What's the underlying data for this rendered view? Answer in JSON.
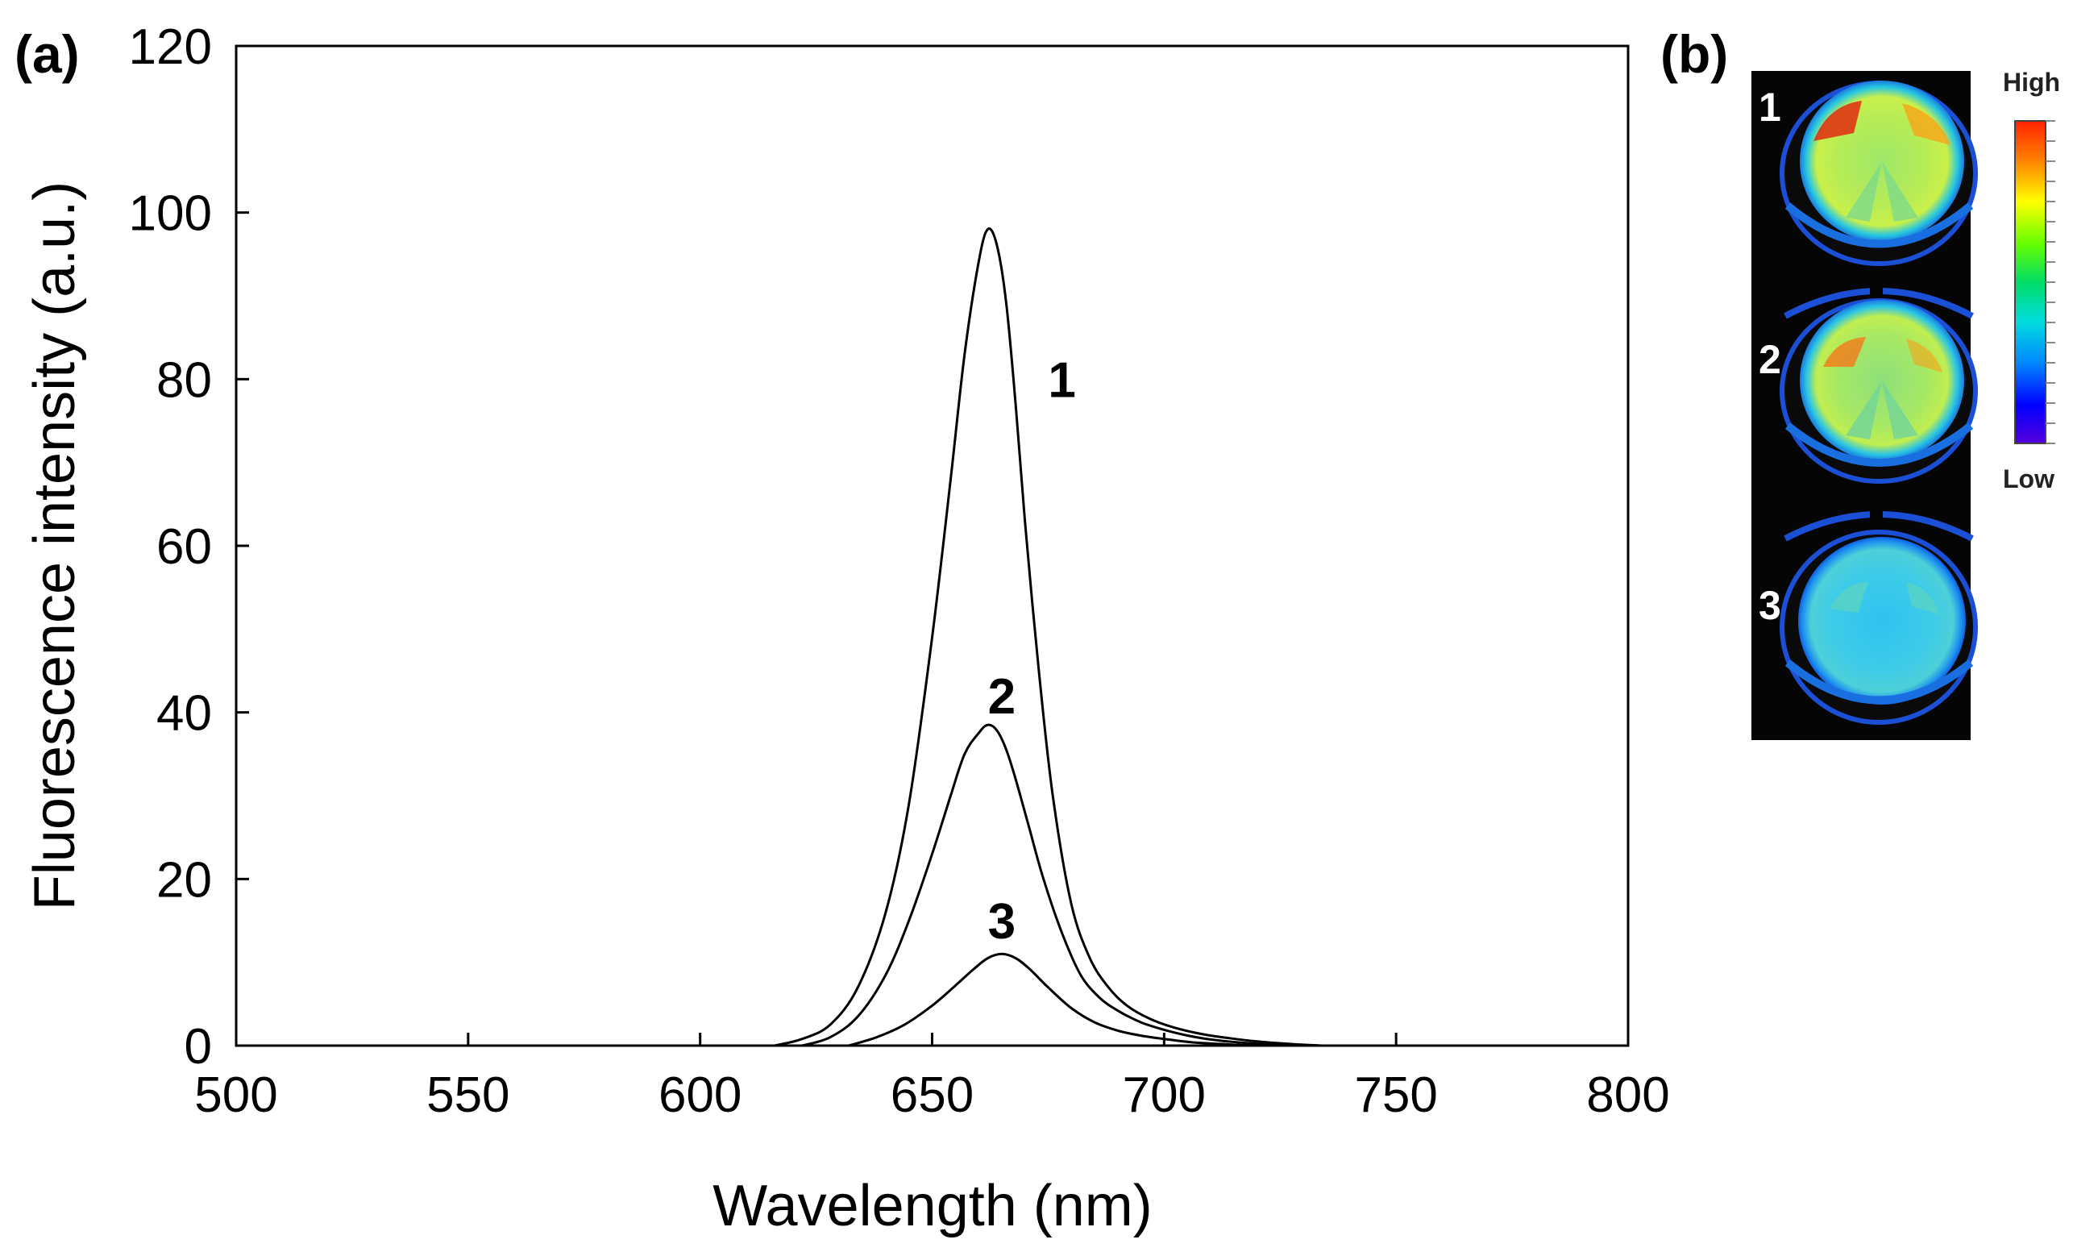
{
  "panels": {
    "a": "(a)",
    "b": "(b)"
  },
  "chart_data": {
    "type": "line",
    "title": "",
    "xlabel": "Wavelength (nm)",
    "ylabel": "Fluorescence intensity (a.u.)",
    "xlim": [
      500,
      800
    ],
    "ylim": [
      0,
      120
    ],
    "xticks": [
      500,
      550,
      600,
      650,
      700,
      750,
      800
    ],
    "yticks": [
      0,
      20,
      40,
      60,
      80,
      100,
      120
    ],
    "grid": false,
    "series": [
      {
        "name": "1",
        "x": [
          616,
          622,
          628,
          634,
          640,
          645,
          650,
          654,
          657,
          660,
          662,
          664,
          666,
          668,
          670,
          673,
          676,
          680,
          684,
          688,
          692,
          697,
          702,
          708,
          714,
          720,
          727,
          734
        ],
        "y": [
          0,
          0.8,
          2.5,
          7,
          16,
          29,
          49,
          68,
          83,
          94,
          98,
          96,
          89,
          77,
          63,
          45,
          30,
          17,
          10.5,
          7,
          4.8,
          3.2,
          2.2,
          1.4,
          0.9,
          0.5,
          0.2,
          0
        ]
      },
      {
        "name": "2",
        "x": [
          622,
          628,
          634,
          640,
          645,
          650,
          654,
          657,
          660,
          662,
          664,
          666,
          668,
          671,
          674,
          678,
          682,
          686,
          690,
          695,
          700,
          706,
          712,
          718,
          724,
          730
        ],
        "y": [
          0,
          1,
          3.5,
          8.5,
          15,
          23,
          30,
          35,
          37.5,
          38.5,
          37.8,
          35.5,
          32,
          26,
          20,
          13.5,
          8.5,
          5.8,
          4.2,
          2.8,
          1.9,
          1.1,
          0.6,
          0.3,
          0.1,
          0
        ]
      },
      {
        "name": "3",
        "x": [
          632,
          638,
          644,
          650,
          655,
          659,
          662,
          665,
          668,
          671,
          675,
          680,
          685,
          690,
          695,
          700,
          706,
          712,
          718,
          724
        ],
        "y": [
          0,
          1,
          2.5,
          4.8,
          7.2,
          9.2,
          10.5,
          11,
          10.5,
          9.2,
          7,
          4.5,
          2.8,
          1.8,
          1.2,
          0.8,
          0.4,
          0.2,
          0.05,
          0
        ]
      }
    ],
    "annotations": [
      {
        "text": "1",
        "x": 675,
        "y": 80
      },
      {
        "text": "2",
        "x": 665,
        "y": 42
      },
      {
        "text": "3",
        "x": 665,
        "y": 15
      }
    ]
  },
  "image_panel": {
    "well_labels": [
      "1",
      "2",
      "3"
    ],
    "colorbar": {
      "high": "High",
      "low": "Low"
    }
  },
  "colors": {
    "line": "#000000",
    "image_bg": "#050505",
    "well_edge": "#1a4fd6",
    "colormap": [
      "#ff2200",
      "#ff8800",
      "#ffff00",
      "#66ff00",
      "#00dd66",
      "#00dddd",
      "#0088ff",
      "#0000ff",
      "#5500dd"
    ]
  }
}
